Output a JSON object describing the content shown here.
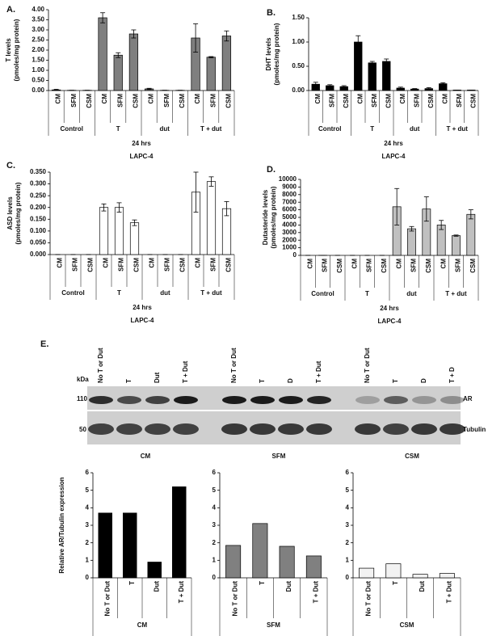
{
  "chart_data": [
    {
      "type": "bar",
      "panel": "A.",
      "ylabel": [
        "T levels",
        "(pmoles/mg protein)"
      ],
      "categories": [
        "CM",
        "SFM",
        "CSM",
        "CM",
        "SFM",
        "CSM",
        "CM",
        "SFM",
        "CSM",
        "CM",
        "SFM",
        "CSM"
      ],
      "groups": [
        "Control",
        "T",
        "dut",
        "T + dut"
      ],
      "group_label": "24 hrs",
      "cell_line": "LAPC-4",
      "values": [
        0.03,
        0.01,
        0.01,
        3.6,
        1.75,
        2.8,
        0.08,
        0.01,
        0.01,
        2.6,
        1.65,
        2.7
      ],
      "errors": [
        0.03,
        0,
        0,
        0.25,
        0.12,
        0.2,
        0.03,
        0,
        0,
        0.7,
        0.03,
        0.25
      ],
      "color": "#7f7f7f",
      "ylim": [
        0,
        4
      ],
      "yticks": [
        {
          "value": 0,
          "label": "0.00"
        },
        {
          "value": 0.5,
          "label": "0.50"
        },
        {
          "value": 1,
          "label": "1.00"
        },
        {
          "value": 1.5,
          "label": "1.50"
        },
        {
          "value": 2,
          "label": "2.00"
        },
        {
          "value": 2.5,
          "label": "2.50"
        },
        {
          "value": 3,
          "label": "3.00"
        },
        {
          "value": 3.5,
          "label": "3.50"
        },
        {
          "value": 4,
          "label": "4.00"
        }
      ]
    },
    {
      "type": "bar",
      "panel": "B.",
      "ylabel": [
        "DHT levels",
        "(pmoles/mg protein)"
      ],
      "categories": [
        "CM",
        "SFM",
        "CSM",
        "CM",
        "SFM",
        "CSM",
        "CM",
        "SFM",
        "CSM",
        "CM",
        "SFM",
        "CSM"
      ],
      "groups": [
        "Control",
        "T",
        "dut",
        "T + dut"
      ],
      "group_label": "24 hrs",
      "cell_line": "LAPC-4",
      "values": [
        0.13,
        0.1,
        0.08,
        1.0,
        0.57,
        0.6,
        0.05,
        0.03,
        0.04,
        0.14,
        0.01,
        0.01
      ],
      "errors": [
        0.04,
        0.02,
        0.02,
        0.13,
        0.03,
        0.05,
        0.02,
        0.01,
        0.02,
        0.02,
        0,
        0
      ],
      "color": "#000000",
      "ylim": [
        0,
        1.5
      ],
      "yticks": [
        {
          "value": 0,
          "label": "0.00"
        },
        {
          "value": 0.5,
          "label": "0.50"
        },
        {
          "value": 1,
          "label": "1.00"
        },
        {
          "value": 1.5,
          "label": "1.50"
        }
      ]
    },
    {
      "type": "bar",
      "panel": "C.",
      "ylabel": [
        "ASD levels",
        "(pmoles/mg protein)"
      ],
      "categories": [
        "CM",
        "SFM",
        "CSM",
        "CM",
        "SFM",
        "CSM",
        "CM",
        "SFM",
        "CSM",
        "CM",
        "SFM",
        "CSM"
      ],
      "groups": [
        "Control",
        "T",
        "dut",
        "T + dut"
      ],
      "group_label": "24 hrs",
      "cell_line": "LAPC-4",
      "values": [
        0,
        0,
        0,
        0.2,
        0.2,
        0.135,
        0,
        0,
        0,
        0.265,
        0.31,
        0.195
      ],
      "errors": [
        0,
        0,
        0,
        0.015,
        0.02,
        0.012,
        0,
        0,
        0,
        0.085,
        0.02,
        0.03
      ],
      "color": "#ffffff",
      "ylim": [
        0,
        0.35
      ],
      "yticks": [
        {
          "value": 0,
          "label": "0.000"
        },
        {
          "value": 0.05,
          "label": "0.050"
        },
        {
          "value": 0.1,
          "label": "0.100"
        },
        {
          "value": 0.15,
          "label": "0.150"
        },
        {
          "value": 0.2,
          "label": "0.200"
        },
        {
          "value": 0.25,
          "label": "0.250"
        },
        {
          "value": 0.3,
          "label": "0.300"
        },
        {
          "value": 0.35,
          "label": "0.350"
        }
      ]
    },
    {
      "type": "bar",
      "panel": "D.",
      "ylabel": [
        "Dutasteride levels",
        "(pmoles/mg protein)"
      ],
      "categories": [
        "CM",
        "SFM",
        "CSM",
        "CM",
        "SFM",
        "CSM",
        "CM",
        "SFM",
        "CSM",
        "CM",
        "SFM",
        "CSM"
      ],
      "groups": [
        "Control",
        "T",
        "dut",
        "T + dut"
      ],
      "group_label": "24 hrs",
      "cell_line": "LAPC-4",
      "values": [
        0,
        10,
        0,
        0,
        0,
        0,
        6400,
        3500,
        6100,
        4000,
        2600,
        5400
      ],
      "errors": [
        0,
        0,
        0,
        0,
        0,
        0,
        2400,
        300,
        1600,
        600,
        80,
        600
      ],
      "color": "#c0c0c0",
      "ylim": [
        0,
        10000
      ],
      "yticks": [
        0,
        1000,
        2000,
        3000,
        4000,
        5000,
        6000,
        7000,
        8000,
        9000,
        10000
      ]
    },
    {
      "type": "bar",
      "ylabel": [
        "Relative AR/Tubulin expression"
      ],
      "xlabel": "CM",
      "categories": [
        "No T or Dut",
        "T",
        "Dut",
        "T + Dut"
      ],
      "values": [
        3.7,
        3.7,
        0.9,
        5.2
      ],
      "color": "#000000",
      "ylim": [
        0,
        6
      ],
      "yticks": [
        0,
        1,
        2,
        3,
        4,
        5,
        6
      ]
    },
    {
      "type": "bar",
      "xlabel": "SFM",
      "categories": [
        "No T or Dut",
        "T",
        "Dut",
        "T + Dut"
      ],
      "values": [
        1.85,
        3.1,
        1.8,
        1.25
      ],
      "color": "#808080",
      "ylim": [
        0,
        6
      ],
      "yticks": [
        0,
        1,
        2,
        3,
        4,
        5,
        6
      ]
    },
    {
      "type": "bar",
      "xlabel": "CSM",
      "categories": [
        "No T or Dut",
        "T",
        "Dut",
        "T + Dut"
      ],
      "values": [
        0.55,
        0.8,
        0.2,
        0.25
      ],
      "color": "#f2f2f2",
      "ylim": [
        0,
        6
      ],
      "yticks": [
        0,
        1,
        2,
        3,
        4,
        5,
        6
      ]
    }
  ],
  "blot": {
    "panel": "E.",
    "kda": "kDa",
    "markers": [
      "110",
      "50"
    ],
    "bands": [
      "AR",
      "Tubulin"
    ],
    "groups": [
      {
        "name": "CM",
        "lanes": [
          "No T or Dut",
          "T",
          "Dut",
          "T + Dut"
        ]
      },
      {
        "name": "SFM",
        "lanes": [
          "No T or Dut",
          "T",
          "D",
          "T + Dut"
        ]
      },
      {
        "name": "CSM",
        "lanes": [
          "No T or Dut",
          "T",
          "D",
          "T + D"
        ]
      }
    ]
  }
}
